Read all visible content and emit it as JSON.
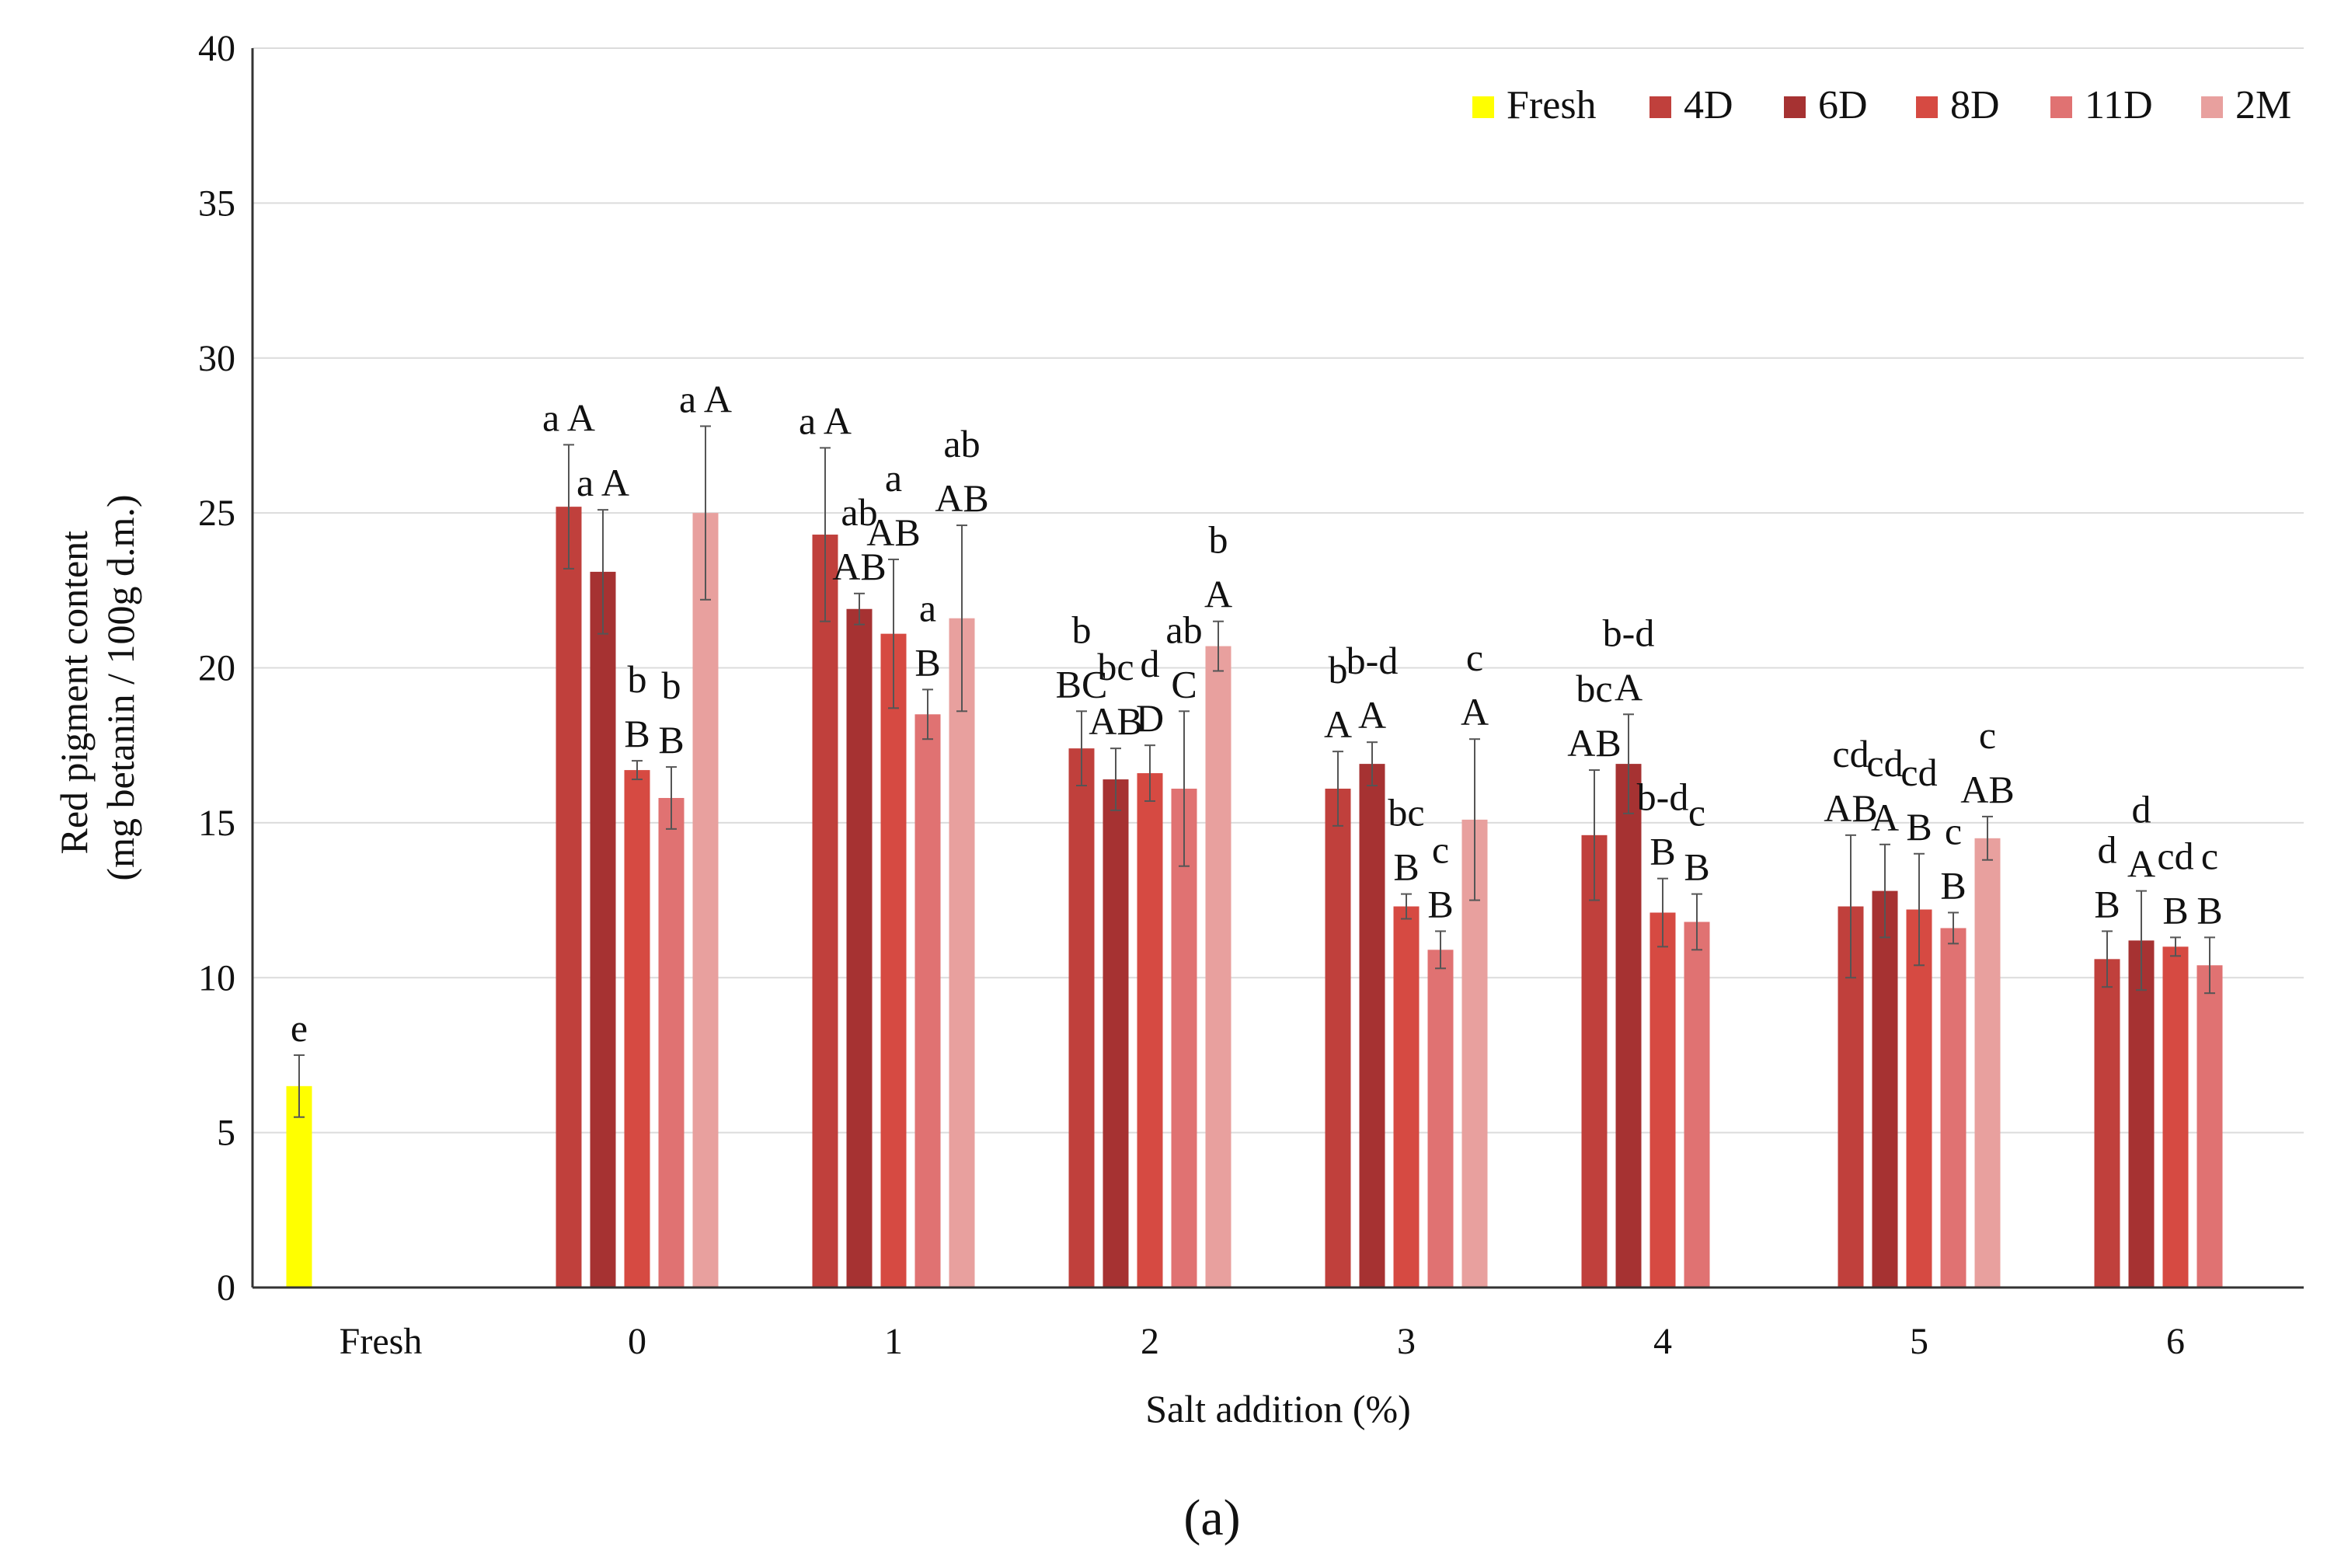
{
  "caption": "(a)",
  "chart_data": {
    "type": "bar",
    "ylabel_lines": [
      "Red pigment content",
      "(mg betanin / 100g d.m.)"
    ],
    "xlabel": "Salt addition (%)",
    "ylim": [
      0,
      40
    ],
    "yticks": [
      0,
      5,
      10,
      15,
      20,
      25,
      30,
      35,
      40
    ],
    "grid": true,
    "legend_position": "top-right",
    "categories": [
      "Fresh",
      "0",
      "1",
      "2",
      "3",
      "4",
      "5",
      "6"
    ],
    "colors": {
      "Fresh": "#ffff00",
      "4D": "#c0403c",
      "6D": "#a63232",
      "8D": "#d64a42",
      "11D": "#e07272",
      "2M": "#e8a09e"
    },
    "series": [
      {
        "name": "Fresh",
        "values": [
          6.5,
          null,
          null,
          null,
          null,
          null,
          null,
          null
        ],
        "errors": [
          1.0,
          null,
          null,
          null,
          null,
          null,
          null,
          null
        ],
        "labels": [
          [
            "e"
          ],
          null,
          null,
          null,
          null,
          null,
          null,
          null
        ]
      },
      {
        "name": "4D",
        "values": [
          null,
          25.2,
          24.3,
          17.4,
          16.1,
          14.6,
          12.3,
          10.6
        ],
        "errors": [
          null,
          2.0,
          2.8,
          1.2,
          1.2,
          2.1,
          2.3,
          0.9
        ],
        "labels": [
          null,
          [
            "a A"
          ],
          [
            "a A"
          ],
          [
            "b",
            "BC"
          ],
          [
            "b",
            "A"
          ],
          [
            "bc",
            "AB"
          ],
          [
            "cd",
            "AB"
          ],
          [
            "d",
            "B"
          ]
        ]
      },
      {
        "name": "6D",
        "values": [
          null,
          23.1,
          21.9,
          16.4,
          16.9,
          16.9,
          12.8,
          11.2
        ],
        "errors": [
          null,
          2.0,
          0.5,
          1.0,
          0.7,
          1.6,
          1.5,
          1.6
        ],
        "labels": [
          null,
          [
            "a A"
          ],
          [
            "ab",
            "AB"
          ],
          [
            "bc",
            "AB"
          ],
          [
            "b-d",
            "A"
          ],
          [
            "b-d",
            "A"
          ],
          [
            "cd",
            "A"
          ],
          [
            "d",
            "A"
          ]
        ]
      },
      {
        "name": "8D",
        "values": [
          null,
          16.7,
          21.1,
          16.6,
          12.3,
          12.1,
          12.2,
          11.0
        ],
        "errors": [
          null,
          0.3,
          2.4,
          0.9,
          0.4,
          1.1,
          1.8,
          0.3
        ],
        "labels": [
          null,
          [
            "b",
            "B"
          ],
          [
            "a",
            "AB"
          ],
          [
            "d",
            "D"
          ],
          [
            "bc",
            "B"
          ],
          [
            "b-d",
            "B"
          ],
          [
            "cd",
            "B"
          ],
          [
            "cd",
            "B"
          ]
        ]
      },
      {
        "name": "11D",
        "values": [
          null,
          15.8,
          18.5,
          16.1,
          10.9,
          11.8,
          11.6,
          10.4
        ],
        "errors": [
          null,
          1.0,
          0.8,
          2.5,
          0.6,
          0.9,
          0.5,
          0.9
        ],
        "labels": [
          null,
          [
            "b",
            "B"
          ],
          [
            "a",
            "B"
          ],
          [
            "ab",
            "C"
          ],
          [
            "c",
            "B"
          ],
          [
            "c",
            "B"
          ],
          [
            "c",
            "B"
          ],
          [
            "c",
            "B"
          ]
        ]
      },
      {
        "name": "2M",
        "values": [
          null,
          25.0,
          21.6,
          20.7,
          15.1,
          null,
          14.5,
          null
        ],
        "errors": [
          null,
          2.8,
          3.0,
          0.8,
          2.6,
          null,
          0.7,
          null
        ],
        "labels": [
          null,
          [
            "a A"
          ],
          [
            "ab",
            "AB"
          ],
          [
            "b",
            "A"
          ],
          [
            "c",
            "A"
          ],
          null,
          [
            "c",
            "AB"
          ],
          null
        ]
      }
    ]
  }
}
